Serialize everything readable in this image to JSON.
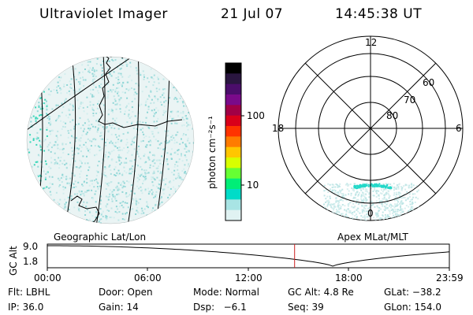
{
  "header": {
    "instrument": "Ultraviolet Imager",
    "date": "21 Jul 07",
    "time": "14:45:38 UT"
  },
  "colorbar": {
    "unit_label": "photon cm⁻²s⁻¹",
    "ticks": [
      "100",
      "10"
    ],
    "colors": [
      "#000000",
      "#2a1640",
      "#4b0d6b",
      "#7a0a8a",
      "#a10046",
      "#d9001a",
      "#ff3300",
      "#ff7b00",
      "#ffc600",
      "#d8ff00",
      "#66ff33",
      "#00ee77",
      "#00dcc8",
      "#a8e4e4",
      "#e0f2f2"
    ]
  },
  "geo_panel": {
    "label": "Geographic Lat/Lon"
  },
  "polar_panel": {
    "label": "Apex MLat/MLT",
    "mlt_labels": {
      "top": "12",
      "left": "18",
      "right": "6",
      "bottom": "0"
    },
    "lat_labels": [
      "60",
      "70",
      "80"
    ]
  },
  "altitude_plot": {
    "ylabel": "GC Alt",
    "yticks": [
      "9.0",
      "1.8"
    ],
    "xticks": [
      "00:00",
      "06:00",
      "12:00",
      "18:00",
      "23:59"
    ],
    "current_time_marker": "14:45:38"
  },
  "status": {
    "row1": [
      {
        "label": "Flt:",
        "value": "LBHL"
      },
      {
        "label": "Door:",
        "value": "Open"
      },
      {
        "label": "Mode:",
        "value": "Normal"
      },
      {
        "label": "GC Alt:",
        "value": "4.8 Re"
      },
      {
        "label": "GLat:",
        "value": "−38.2"
      }
    ],
    "row2": [
      {
        "label": "IP:",
        "value": "36.0"
      },
      {
        "label": "Gain:",
        "value": "14"
      },
      {
        "label": "Dsp:",
        "value": "  −6.1"
      },
      {
        "label": "Seq:",
        "value": "39"
      },
      {
        "label": "GLon:",
        "value": "154.0"
      }
    ]
  }
}
